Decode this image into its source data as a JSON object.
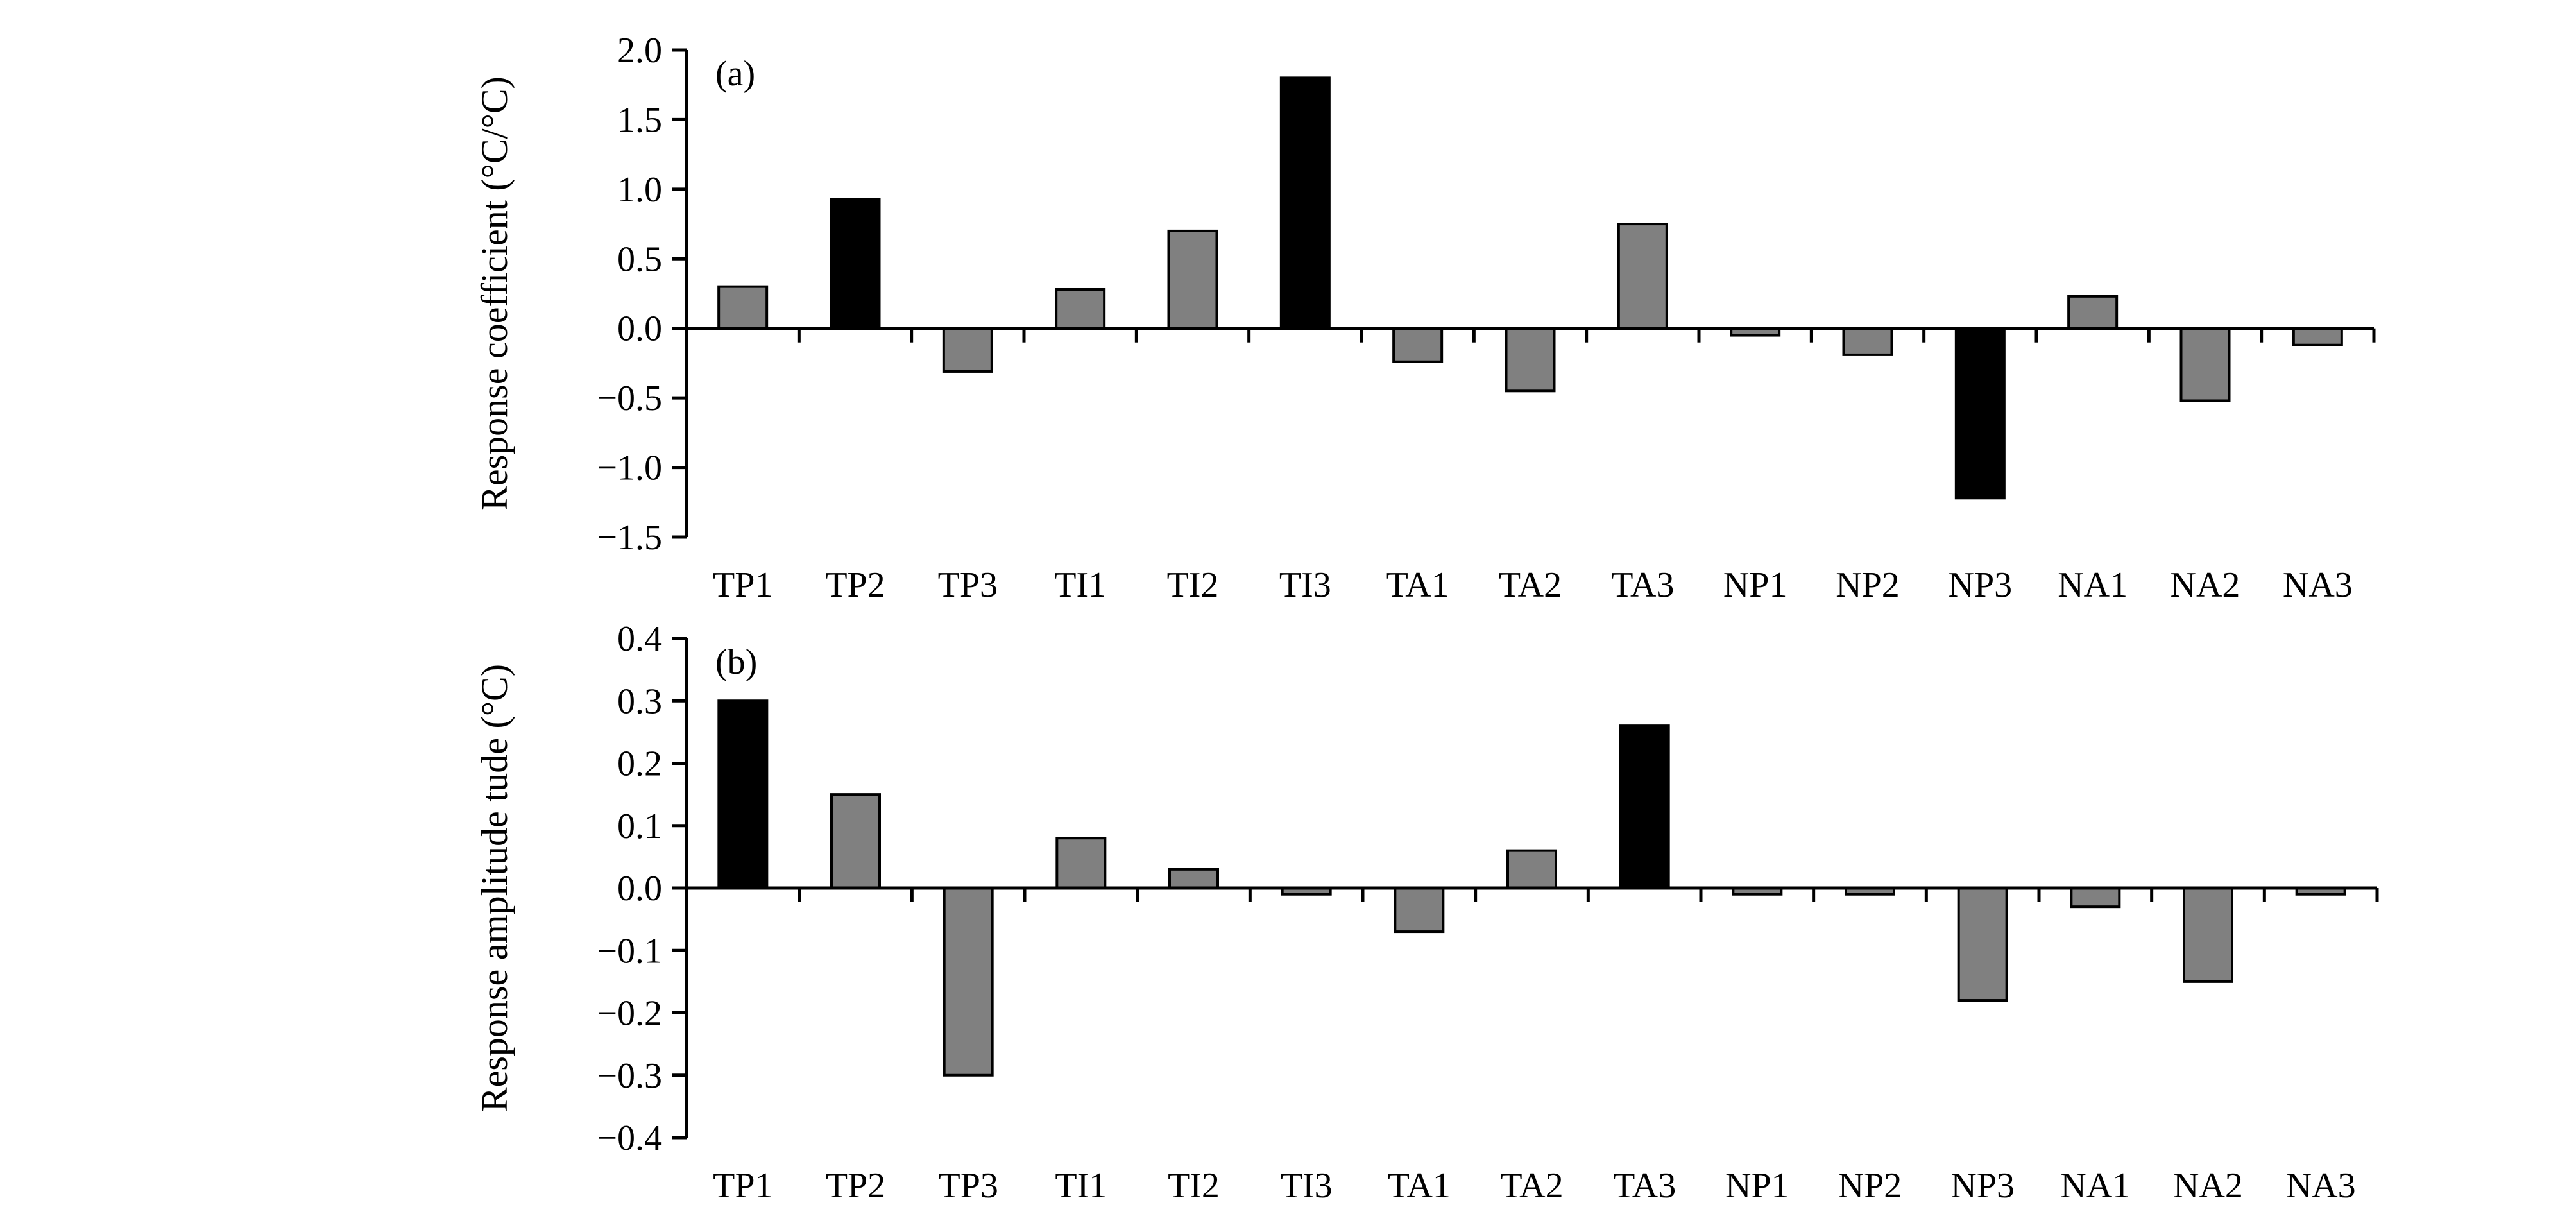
{
  "chart_data": [
    {
      "type": "bar",
      "panel_label": "(a)",
      "ylabel": "Response coefficient (°C/°C)",
      "xlabel": "",
      "ylim": [
        -1.5,
        2.0
      ],
      "yticks": [
        2.0,
        1.5,
        1.0,
        0.5,
        0.0,
        -0.5,
        -1.0,
        -1.5
      ],
      "ytick_labels": [
        "2.0",
        "1.5",
        "1.0",
        "0.5",
        "0.0",
        "−0.5",
        "−1.0",
        "−1.5"
      ],
      "categories": [
        "TP1",
        "TP2",
        "TP3",
        "TI1",
        "TI2",
        "TI3",
        "TA1",
        "TA2",
        "TA3",
        "NP1",
        "NP2",
        "NP3",
        "NA1",
        "NA2",
        "NA3"
      ],
      "values": [
        0.3,
        0.93,
        -0.31,
        0.28,
        0.7,
        1.8,
        -0.24,
        -0.45,
        0.75,
        -0.05,
        -0.19,
        -1.22,
        0.23,
        -0.52,
        -0.12
      ],
      "highlighted": [
        false,
        true,
        false,
        false,
        false,
        true,
        false,
        false,
        false,
        false,
        false,
        true,
        false,
        false,
        false
      ],
      "colors": {
        "normal": "#808080",
        "highlight": "#000000"
      },
      "grid": false,
      "legend": "none"
    },
    {
      "type": "bar",
      "panel_label": "(b)",
      "ylabel": "Response amplitude tude (°C)",
      "xlabel": "",
      "ylim": [
        -0.4,
        0.4
      ],
      "yticks": [
        0.4,
        0.3,
        0.2,
        0.1,
        0.0,
        -0.1,
        -0.2,
        -0.3,
        -0.4
      ],
      "ytick_labels": [
        "0.4",
        "0.3",
        "0.2",
        "0.1",
        "0.0",
        "−0.1",
        "−0.2",
        "−0.3",
        "−0.4"
      ],
      "categories": [
        "TP1",
        "TP2",
        "TP3",
        "TI1",
        "TI2",
        "TI3",
        "TA1",
        "TA2",
        "TA3",
        "NP1",
        "NP2",
        "NP3",
        "NA1",
        "NA2",
        "NA3"
      ],
      "values": [
        0.3,
        0.15,
        -0.3,
        0.08,
        0.03,
        -0.01,
        -0.07,
        0.06,
        0.26,
        -0.01,
        -0.01,
        -0.18,
        -0.03,
        -0.15,
        -0.01
      ],
      "highlighted": [
        true,
        false,
        false,
        false,
        false,
        false,
        false,
        false,
        true,
        false,
        false,
        false,
        false,
        false,
        false
      ],
      "colors": {
        "normal": "#808080",
        "highlight": "#000000"
      },
      "grid": false,
      "legend": "none"
    }
  ]
}
